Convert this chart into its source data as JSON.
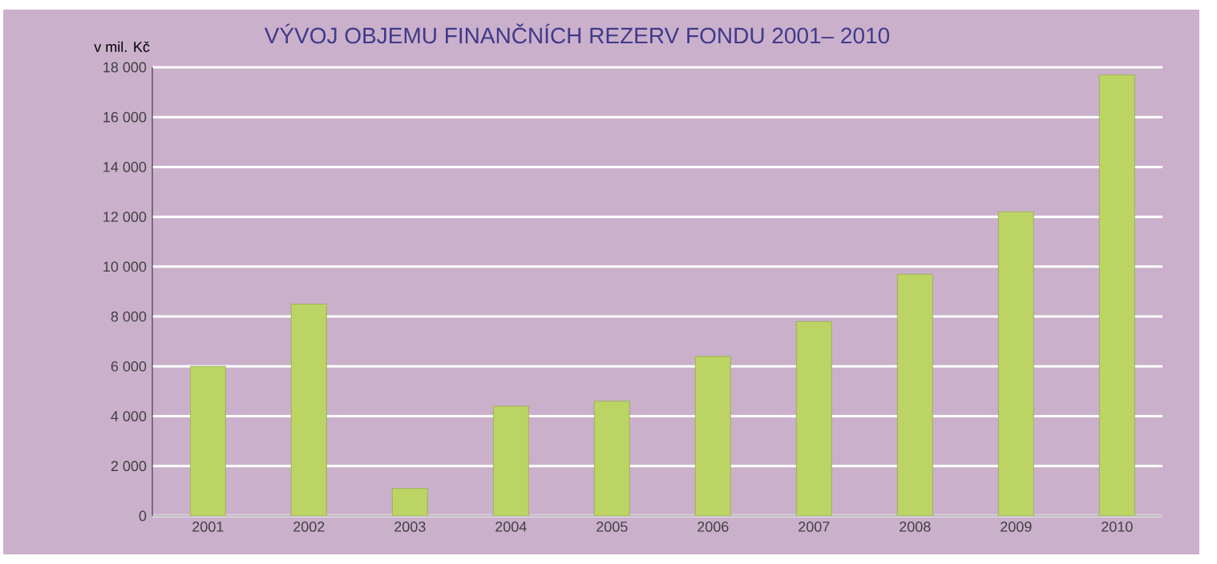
{
  "chart_data": {
    "type": "bar",
    "title": "VÝVOJ OBJEMU FINANČNÍCH REZERV FONDU 2001– 2010",
    "ylabel": "v mil. Kč",
    "categories": [
      "2001",
      "2002",
      "2003",
      "2004",
      "2005",
      "2006",
      "2007",
      "2008",
      "2009",
      "2010"
    ],
    "values": [
      6000,
      8500,
      1100,
      4400,
      4600,
      6400,
      7800,
      9700,
      12200,
      17700
    ],
    "color": "#bcd464",
    "ylim": [
      0,
      18000
    ],
    "yticks": [
      0,
      {
        "value": 2000,
        "label": "2 000"
      },
      {
        "value": 4000,
        "label": "4 000"
      },
      {
        "value": 6000,
        "label": "6 000"
      },
      {
        "value": 8000,
        "label": "8 000"
      },
      {
        "value": 10000,
        "label": "10 000"
      },
      {
        "value": 12000,
        "label": "12 000"
      },
      {
        "value": 14000,
        "label": "14 000"
      },
      {
        "value": 16000,
        "label": "16 000"
      },
      {
        "value": 18000,
        "label": "18 000"
      }
    ],
    "grid": "y"
  }
}
